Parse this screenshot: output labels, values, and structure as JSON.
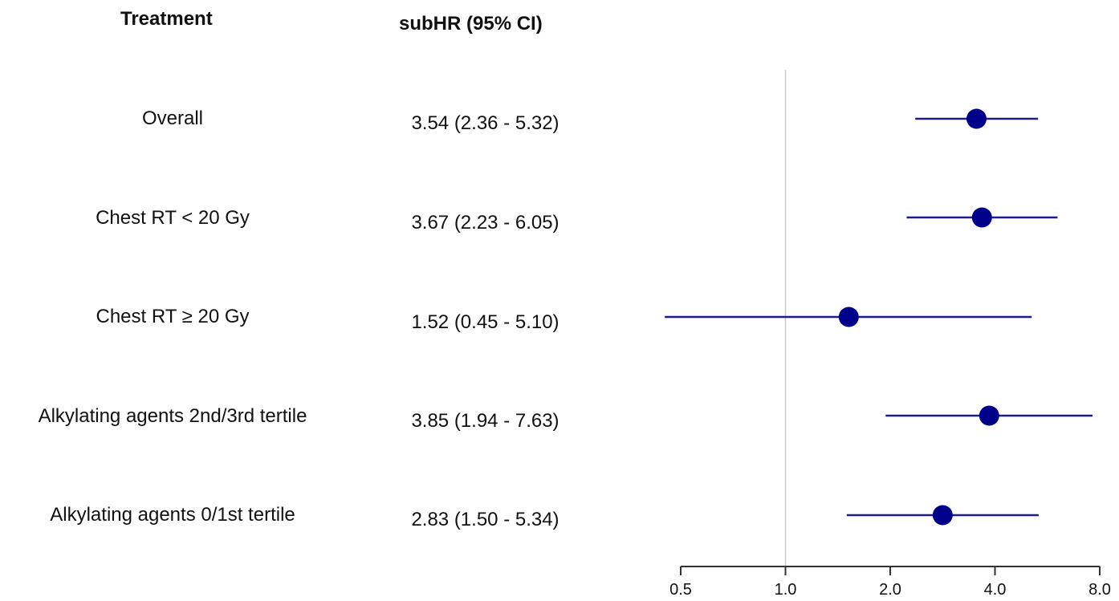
{
  "headers": {
    "treatment": "Treatment",
    "hr": "subHR (95% CI)"
  },
  "rows": [
    {
      "label": "Overall",
      "hr_text": "3.54 (2.36 - 5.32)"
    },
    {
      "label": "Chest RT < 20 Gy",
      "hr_text": "3.67 (2.23 - 6.05)"
    },
    {
      "label": "Chest RT ≥ 20 Gy",
      "hr_text": "1.52 (0.45 - 5.10)"
    },
    {
      "label": "Alkylating agents 2nd/3rd tertile",
      "hr_text": "3.85 (1.94 - 7.63)"
    },
    {
      "label": "Alkylating agents 0/1st tertile",
      "hr_text": "2.83 (1.50 - 5.34)"
    }
  ],
  "chart_data": {
    "type": "scatter",
    "subtype": "forest",
    "xscale": "log2",
    "xlim": [
      0.5,
      8.0
    ],
    "reference_line": 1.0,
    "xticks": [
      "0.5",
      "1.0",
      "2.0",
      "4.0",
      "8.0"
    ],
    "xtick_values": [
      0.5,
      1.0,
      2.0,
      4.0,
      8.0
    ],
    "categories": [
      "Overall",
      "Chest RT < 20 Gy",
      "Chest RT ≥ 20 Gy",
      "Alkylating agents 2nd/3rd tertile",
      "Alkylating agents 0/1st tertile"
    ],
    "values": [
      3.54,
      3.67,
      1.52,
      3.85,
      2.83
    ],
    "ci_low": [
      2.36,
      2.23,
      0.45,
      1.94,
      1.5
    ],
    "ci_high": [
      5.32,
      6.05,
      5.1,
      7.63,
      5.34
    ],
    "colors": {
      "marker": "#00008b",
      "ci_line": "#1c1c8c",
      "ref_line": "#c8c8c8",
      "axis": "#333333"
    }
  }
}
